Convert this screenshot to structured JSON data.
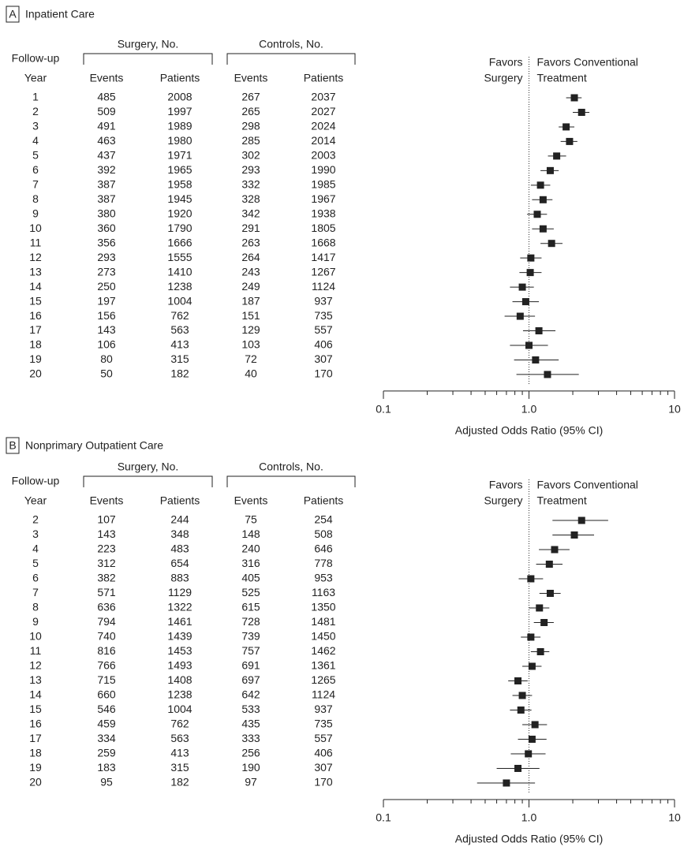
{
  "chart_data": [
    {
      "type": "forest",
      "label": "A",
      "title": "Inpatient Care",
      "groups": [
        "Surgery, No.",
        "Controls, No."
      ],
      "row_header": [
        "Follow-up",
        "Year"
      ],
      "columns": [
        "Events",
        "Patients",
        "Events",
        "Patients"
      ],
      "favors_left": [
        "Favors",
        "Surgery"
      ],
      "favors_right": [
        "Favors Conventional",
        "Treatment"
      ],
      "categories": [
        1,
        2,
        3,
        4,
        5,
        6,
        7,
        8,
        9,
        10,
        11,
        12,
        13,
        14,
        15,
        16,
        17,
        18,
        19,
        20
      ],
      "rows": [
        [
          485,
          2008,
          267,
          2037
        ],
        [
          509,
          1997,
          265,
          2027
        ],
        [
          491,
          1989,
          298,
          2024
        ],
        [
          463,
          1980,
          285,
          2014
        ],
        [
          437,
          1971,
          302,
          2003
        ],
        [
          392,
          1965,
          293,
          1990
        ],
        [
          387,
          1958,
          332,
          1985
        ],
        [
          387,
          1945,
          328,
          1967
        ],
        [
          380,
          1920,
          342,
          1938
        ],
        [
          360,
          1790,
          291,
          1805
        ],
        [
          356,
          1666,
          263,
          1668
        ],
        [
          293,
          1555,
          264,
          1417
        ],
        [
          273,
          1410,
          243,
          1267
        ],
        [
          250,
          1238,
          249,
          1124
        ],
        [
          197,
          1004,
          187,
          937
        ],
        [
          156,
          762,
          151,
          735
        ],
        [
          143,
          563,
          129,
          557
        ],
        [
          106,
          413,
          103,
          406
        ],
        [
          80,
          315,
          72,
          307
        ],
        [
          50,
          182,
          40,
          170
        ]
      ],
      "values": [
        2.05,
        2.3,
        1.8,
        1.9,
        1.55,
        1.4,
        1.2,
        1.25,
        1.14,
        1.25,
        1.43,
        1.03,
        1.02,
        0.9,
        0.95,
        0.87,
        1.17,
        1.0,
        1.11,
        1.34
      ],
      "ci_low": [
        1.8,
        2.0,
        1.6,
        1.65,
        1.35,
        1.2,
        1.03,
        1.05,
        0.97,
        1.05,
        1.2,
        0.87,
        0.86,
        0.74,
        0.77,
        0.68,
        0.91,
        0.74,
        0.79,
        0.82
      ],
      "ci_high": [
        2.3,
        2.6,
        2.05,
        2.15,
        1.8,
        1.6,
        1.4,
        1.45,
        1.33,
        1.48,
        1.7,
        1.22,
        1.22,
        1.08,
        1.17,
        1.1,
        1.52,
        1.35,
        1.6,
        2.2
      ],
      "xscale": "log",
      "xlim": [
        0.1,
        10
      ],
      "xticks": [
        0.1,
        {
          "value": 1,
          "label": "1.0"
        },
        10
      ],
      "xminorticks": [
        0.2,
        0.3,
        0.4,
        0.5,
        0.6,
        0.7,
        0.8,
        0.9,
        2,
        3,
        4,
        5,
        6,
        7,
        8,
        9
      ],
      "refline": 1,
      "xlabel": "Adjusted Odds Ratio (95% CI)",
      "color": "#222222"
    },
    {
      "type": "forest",
      "label": "B",
      "title": "Nonprimary Outpatient Care",
      "groups": [
        "Surgery, No.",
        "Controls, No."
      ],
      "row_header": [
        "Follow-up",
        "Year"
      ],
      "columns": [
        "Events",
        "Patients",
        "Events",
        "Patients"
      ],
      "favors_left": [
        "Favors",
        "Surgery"
      ],
      "favors_right": [
        "Favors Conventional",
        "Treatment"
      ],
      "categories": [
        2,
        3,
        4,
        5,
        6,
        7,
        8,
        9,
        10,
        11,
        12,
        13,
        14,
        15,
        16,
        17,
        18,
        19,
        20
      ],
      "rows": [
        [
          107,
          244,
          75,
          254
        ],
        [
          143,
          348,
          148,
          508
        ],
        [
          223,
          483,
          240,
          646
        ],
        [
          312,
          654,
          316,
          778
        ],
        [
          382,
          883,
          405,
          953
        ],
        [
          571,
          1129,
          525,
          1163
        ],
        [
          636,
          1322,
          615,
          1350
        ],
        [
          794,
          1461,
          728,
          1481
        ],
        [
          740,
          1439,
          739,
          1450
        ],
        [
          816,
          1453,
          757,
          1462
        ],
        [
          766,
          1493,
          691,
          1361
        ],
        [
          715,
          1408,
          697,
          1265
        ],
        [
          660,
          1238,
          642,
          1124
        ],
        [
          546,
          1004,
          533,
          937
        ],
        [
          459,
          762,
          435,
          735
        ],
        [
          334,
          563,
          333,
          557
        ],
        [
          259,
          413,
          256,
          406
        ],
        [
          183,
          315,
          190,
          307
        ],
        [
          95,
          182,
          97,
          170
        ]
      ],
      "values": [
        2.3,
        2.05,
        1.5,
        1.38,
        1.03,
        1.4,
        1.18,
        1.27,
        1.03,
        1.2,
        1.05,
        0.84,
        0.9,
        0.88,
        1.1,
        1.05,
        0.99,
        0.84,
        0.7
      ],
      "ci_low": [
        1.45,
        1.45,
        1.17,
        1.12,
        0.85,
        1.18,
        1.0,
        1.08,
        0.88,
        1.03,
        0.9,
        0.72,
        0.77,
        0.74,
        0.9,
        0.84,
        0.75,
        0.6,
        0.44
      ],
      "ci_high": [
        3.5,
        2.8,
        1.9,
        1.7,
        1.25,
        1.65,
        1.38,
        1.48,
        1.2,
        1.38,
        1.22,
        0.98,
        1.05,
        1.04,
        1.33,
        1.32,
        1.3,
        1.18,
        1.1
      ],
      "xscale": "log",
      "xlim": [
        0.1,
        10
      ],
      "xticks": [
        0.1,
        {
          "value": 1,
          "label": "1.0"
        },
        10
      ],
      "xminorticks": [
        0.2,
        0.3,
        0.4,
        0.5,
        0.6,
        0.7,
        0.8,
        0.9,
        2,
        3,
        4,
        5,
        6,
        7,
        8,
        9
      ],
      "refline": 1,
      "xlabel": "Adjusted Odds Ratio (95% CI)",
      "color": "#222222"
    }
  ]
}
